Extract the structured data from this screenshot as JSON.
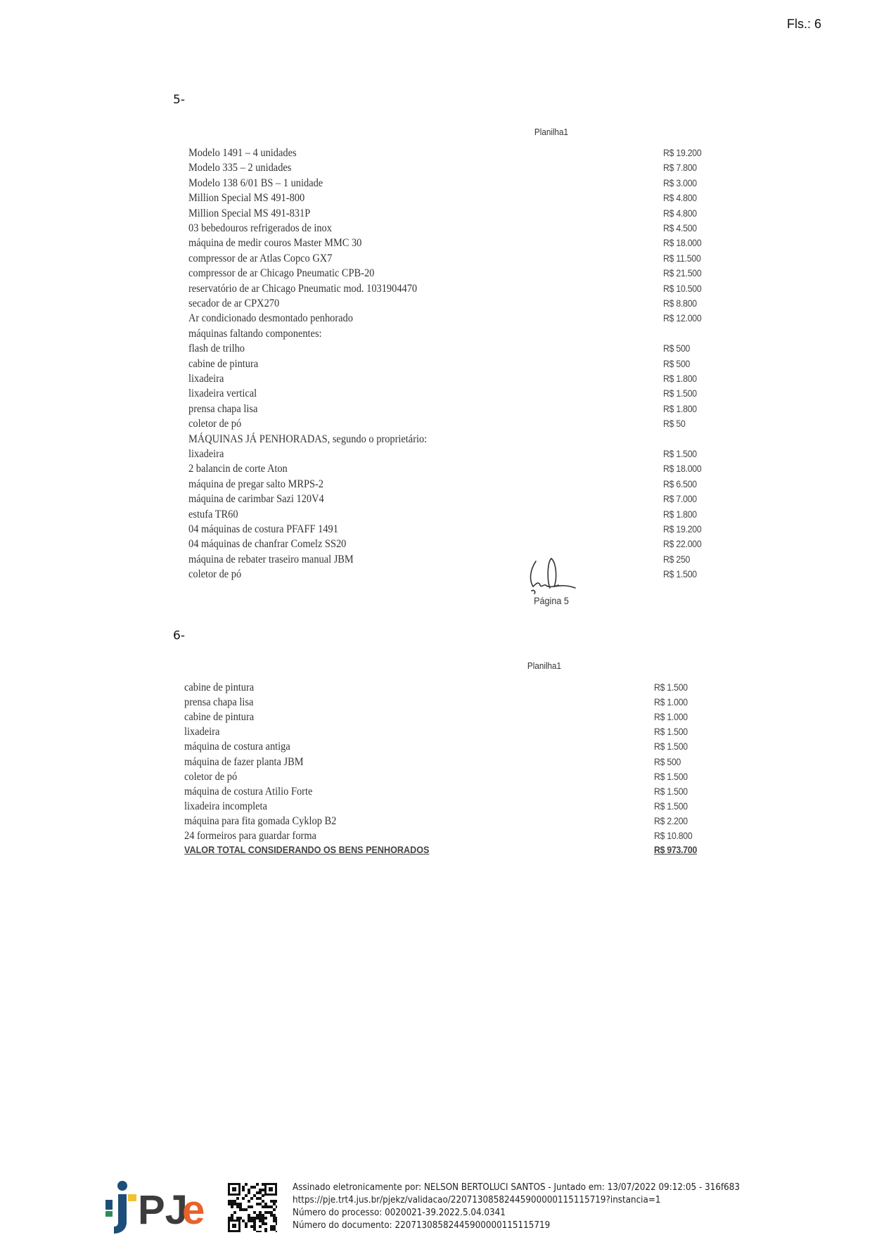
{
  "header": {
    "fls": "Fls.: 6"
  },
  "section5": {
    "number": "5-",
    "sheet_title": "Planilha1",
    "rows": [
      {
        "item": "Modelo 1491 – 4 unidades",
        "value": "R$ 19.200"
      },
      {
        "item": "Modelo 335 – 2 unidades",
        "value": "R$ 7.800"
      },
      {
        "item": "Modelo 138 6/01 BS – 1 unidade",
        "value": "R$ 3.000"
      },
      {
        "item": "Million Special  MS 491-800",
        "value": "R$ 4.800"
      },
      {
        "item": "Million Special  MS 491-831P",
        "value": "R$ 4.800"
      },
      {
        "item": "03 bebedouros refrigerados de inox",
        "value": "R$ 4.500"
      },
      {
        "item": "máquina de medir couros Master MMC 30",
        "value": "R$ 18.000"
      },
      {
        "item": "compressor de ar Atlas Copco GX7",
        "value": "R$ 11.500"
      },
      {
        "item": "compressor de ar Chicago Pneumatic CPB-20",
        "value": "R$ 21.500"
      },
      {
        "item": "reservatório de ar Chicago Pneumatic mod. 1031904470",
        "value": "R$ 10.500"
      },
      {
        "item": "secador de ar CPX270",
        "value": "R$ 8.800"
      },
      {
        "item": "Ar condicionado desmontado penhorado",
        "value": "R$ 12.000"
      },
      {
        "item": "máquinas faltando componentes:",
        "value": ""
      },
      {
        "item": "flash de trilho",
        "value": "R$ 500"
      },
      {
        "item": "cabine de pintura",
        "value": "R$ 500"
      },
      {
        "item": "lixadeira",
        "value": "R$ 1.800"
      },
      {
        "item": "lixadeira vertical",
        "value": "R$ 1.500"
      },
      {
        "item": "prensa chapa lisa",
        "value": "R$ 1.800"
      },
      {
        "item": "coletor de pó",
        "value": "R$ 50"
      },
      {
        "item": "MÁQUINAS JÁ PENHORADAS, segundo o proprietário:",
        "value": ""
      },
      {
        "item": "lixadeira",
        "value": "R$ 1.500"
      },
      {
        "item": "2 balancin de corte Aton",
        "value": "R$ 18.000"
      },
      {
        "item": "máquina de pregar salto MRPS-2",
        "value": "R$ 6.500"
      },
      {
        "item": "máquina de carimbar Sazi 120V4",
        "value": "R$ 7.000"
      },
      {
        "item": "estufa TR60",
        "value": "R$ 1.800"
      },
      {
        "item": "04 máquinas de costura PFAFF 1491",
        "value": "R$ 19.200"
      },
      {
        "item": "04 máquinas de chanfrar Comelz SS20",
        "value": "R$ 22.000"
      },
      {
        "item": "máquina de rebater traseiro manual JBM",
        "value": "R$ 250"
      },
      {
        "item": "coletor de pó",
        "value": "R$ 1.500"
      }
    ],
    "page_label": "Página 5"
  },
  "section6": {
    "number": "6-",
    "sheet_title": "Planilha1",
    "rows": [
      {
        "item": "cabine de pintura",
        "value": "R$ 1.500"
      },
      {
        "item": "prensa chapa lisa",
        "value": "R$ 1.000"
      },
      {
        "item": "cabine de pintura",
        "value": "R$ 1.000"
      },
      {
        "item": "lixadeira",
        "value": "R$ 1.500"
      },
      {
        "item": "máquina de costura antiga",
        "value": "R$ 1.500"
      },
      {
        "item": "máquina de fazer planta JBM",
        "value": "R$ 500"
      },
      {
        "item": "coletor de pó",
        "value": "R$ 1.500"
      },
      {
        "item": "máquina de costura Atilio Forte",
        "value": "R$ 1.500"
      },
      {
        "item": "lixadeira incompleta",
        "value": "R$ 1.500"
      },
      {
        "item": "máquina para fita gomada Cyklop B2",
        "value": "R$ 2.200"
      },
      {
        "item": "24 formeiros para guardar forma",
        "value": "R$ 10.800"
      }
    ],
    "total": {
      "label": "VALOR TOTAL CONSIDERANDO OS BENS PENHORADOS",
      "value": "R$ 973.700"
    }
  },
  "footer": {
    "logo_text": "PJe",
    "logo_colors": {
      "blue": "#1d4e7a",
      "green": "#2e8b57",
      "yellow": "#f2c230",
      "gray": "#3c3c3c",
      "orange": "#e8622a"
    },
    "signed_line": "Assinado eletronicamente por: NELSON BERTOLUCI SANTOS - Juntado em: 13/07/2022 09:12:05 - 316f683",
    "url_line": "https://pje.trt4.jus.br/pjekz/validacao/22071308582445900000115115719?instancia=1",
    "process_line": "Número do processo: 0020021-39.2022.5.04.0341",
    "document_line": "Número do documento: 22071308582445900000115115719"
  }
}
